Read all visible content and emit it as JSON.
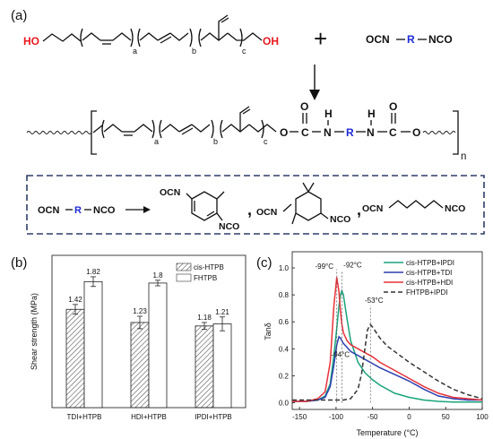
{
  "panel_labels": {
    "a": "(a)",
    "b": "(b)",
    "c": "(c)"
  },
  "scheme": {
    "ho_left": "HO",
    "oh_right": "OH",
    "sub_a": "a",
    "sub_b": "b",
    "sub_c": "c",
    "plus": "+",
    "ocn": "OCN",
    "r": "R",
    "nco": "NCO",
    "polymer": {
      "o1": "O",
      "c1": "C",
      "o_dbl1": "O",
      "h1": "H",
      "n1": "N",
      "r": "R",
      "h2": "H",
      "n2": "N",
      "c2": "C",
      "o_dbl2": "O",
      "o2": "O",
      "n_sub": "n"
    },
    "box": {
      "ocn": "OCN",
      "r": "R",
      "nco": "NCO",
      "tdi_ocn": "OCN",
      "tdi_nco": "NCO",
      "ipdi_ocn": "OCN",
      "ipdi_nco": "NCO",
      "hdi_ocn": "OCN",
      "hdi_nco": "NCO",
      "comma": ","
    },
    "colors": {
      "hydroxyl": "#e8191f",
      "r_group": "#1f2ad8",
      "box_border": "#2e3d68"
    }
  },
  "chart_data": [
    {
      "type": "bar",
      "ylabel": "Shear strength  (MPa)",
      "categories": [
        "TDI+HTPB",
        "HDI+HTPB",
        "IPDI+HTPB"
      ],
      "series": [
        {
          "name": "cis-HTPB",
          "values": [
            1.42,
            1.23,
            1.18
          ],
          "errors": [
            0.07,
            0.09,
            0.05
          ],
          "pattern": "hatched"
        },
        {
          "name": "FHTPB",
          "values": [
            1.82,
            1.8,
            1.21
          ],
          "errors": [
            0.07,
            0.04,
            0.1
          ],
          "pattern": "white"
        }
      ],
      "value_labels": [
        [
          "1.42",
          "1.23",
          "1.18"
        ],
        [
          "1.82",
          "1.8",
          "1.21"
        ]
      ],
      "ylim": [
        0,
        2.2
      ],
      "grid": false,
      "legend": "top-right"
    },
    {
      "type": "line",
      "xlabel": "Temperature (°C)",
      "ylabel": "Tanδ",
      "xlim": [
        -160,
        100
      ],
      "ylim": [
        -0.05,
        1.12
      ],
      "x_ticks": [
        "-150",
        "-100",
        "-50",
        "0",
        "50",
        "100"
      ],
      "y_ticks": [
        "0.0",
        "0.2",
        "0.4",
        "0.6",
        "0.8",
        "1.0"
      ],
      "series": [
        {
          "name": "cis-HTPB+IPDI",
          "color": "#1aa37a",
          "dash": "solid",
          "x": [
            -160,
            -140,
            -125,
            -115,
            -108,
            -103,
            -99,
            -96,
            -94,
            -92,
            -90,
            -85,
            -80,
            -70,
            -60,
            -50,
            -40,
            -20,
            0,
            20,
            40,
            60,
            80,
            100
          ],
          "y": [
            0.01,
            0.01,
            0.02,
            0.05,
            0.14,
            0.35,
            0.55,
            0.72,
            0.8,
            0.83,
            0.8,
            0.62,
            0.46,
            0.3,
            0.22,
            0.17,
            0.13,
            0.07,
            0.04,
            0.02,
            0.01,
            0.005,
            0.005,
            0.005
          ]
        },
        {
          "name": "cis-HTPB+TDI",
          "color": "#2d3fb0",
          "dash": "solid",
          "x": [
            -160,
            -140,
            -125,
            -115,
            -108,
            -103,
            -99,
            -96,
            -94,
            -92,
            -90,
            -85,
            -80,
            -70,
            -60,
            -50,
            -40,
            -20,
            0,
            20,
            40,
            60,
            80,
            100
          ],
          "y": [
            0.01,
            0.01,
            0.02,
            0.04,
            0.12,
            0.28,
            0.43,
            0.49,
            0.48,
            0.46,
            0.44,
            0.41,
            0.38,
            0.35,
            0.32,
            0.29,
            0.26,
            0.21,
            0.16,
            0.1,
            0.05,
            0.03,
            0.02,
            0.02
          ]
        },
        {
          "name": "cis-HTPB+HDI",
          "color": "#e8323a",
          "dash": "solid",
          "x": [
            -160,
            -140,
            -125,
            -115,
            -108,
            -103,
            -99,
            -96,
            -94,
            -92,
            -90,
            -85,
            -80,
            -70,
            -60,
            -50,
            -40,
            -20,
            0,
            20,
            40,
            60,
            80,
            100
          ],
          "y": [
            0.01,
            0.01,
            0.03,
            0.08,
            0.3,
            0.72,
            0.93,
            0.82,
            0.68,
            0.58,
            0.52,
            0.46,
            0.43,
            0.4,
            0.37,
            0.34,
            0.3,
            0.24,
            0.18,
            0.12,
            0.07,
            0.04,
            0.03,
            0.02
          ]
        },
        {
          "name": "FHTPB+IPDI",
          "color": "#333333",
          "dash": "dashed",
          "x": [
            -160,
            -140,
            -120,
            -100,
            -90,
            -80,
            -70,
            -65,
            -60,
            -57,
            -53,
            -50,
            -45,
            -40,
            -30,
            -20,
            0,
            20,
            40,
            60,
            80,
            100
          ],
          "y": [
            0.02,
            0.02,
            0.02,
            0.02,
            0.02,
            0.03,
            0.1,
            0.22,
            0.42,
            0.54,
            0.58,
            0.56,
            0.52,
            0.48,
            0.42,
            0.38,
            0.3,
            0.23,
            0.16,
            0.1,
            0.06,
            0.03
          ]
        }
      ],
      "annotations": [
        {
          "text": "-99°C",
          "x": -99
        },
        {
          "text": "-92°C",
          "x": -92
        },
        {
          "text": "-94°C",
          "x": -94
        },
        {
          "text": "-53°C",
          "x": -53
        }
      ],
      "grid": false,
      "legend": "top-right"
    }
  ]
}
